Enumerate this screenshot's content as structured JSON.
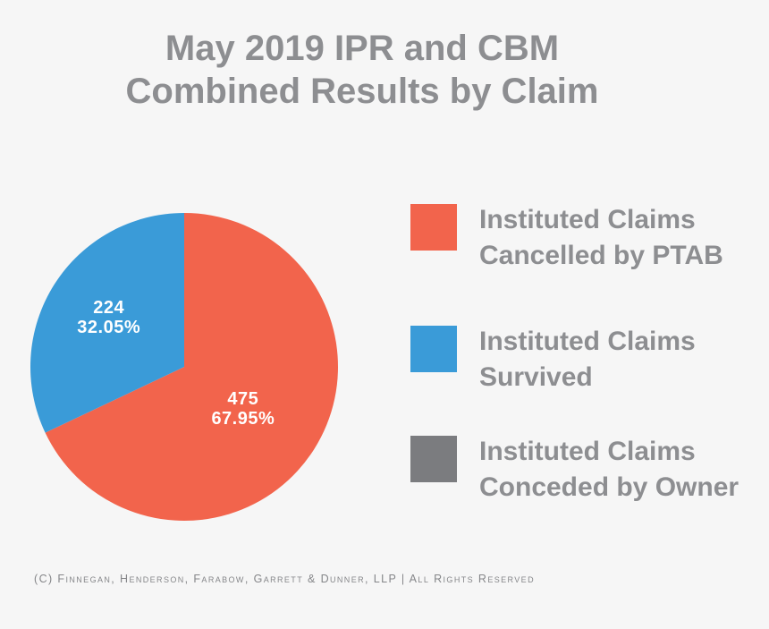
{
  "chart_data": {
    "type": "pie",
    "title": "May 2019 IPR and CBM Combined Results by Claim",
    "title_lines": [
      "May 2019 IPR and CBM",
      "Combined Results by Claim"
    ],
    "slices": [
      {
        "name": "Instituted Claims Cancelled by PTAB",
        "value": 475,
        "percent": 67.95,
        "value_label": "475",
        "percent_label": "67.95%",
        "color": "#f2644c"
      },
      {
        "name": "Instituted Claims Survived",
        "value": 224,
        "percent": 32.05,
        "value_label": "224",
        "percent_label": "32.05%",
        "color": "#3a9bd8"
      },
      {
        "name": "Instituted Claims Conceded by Owner",
        "value": 0,
        "percent": 0,
        "value_label": "",
        "percent_label": "",
        "color": "#7b7c7f"
      }
    ],
    "legend": [
      {
        "lines": [
          "Instituted Claims",
          "Cancelled by PTAB"
        ],
        "color": "#f2644c"
      },
      {
        "lines": [
          "Instituted Claims",
          "Survived"
        ],
        "color": "#3a9bd8"
      },
      {
        "lines": [
          "Instituted Claims",
          "Conceded by Owner"
        ],
        "color": "#7b7c7f"
      }
    ],
    "legend_position": "right"
  },
  "footer": "(C) Finnegan, Henderson, Farabow, Garrett & Dunner, LLP | All Rights Reserved",
  "colors": {
    "background": "#f6f6f6",
    "text": "#8d8e91"
  }
}
